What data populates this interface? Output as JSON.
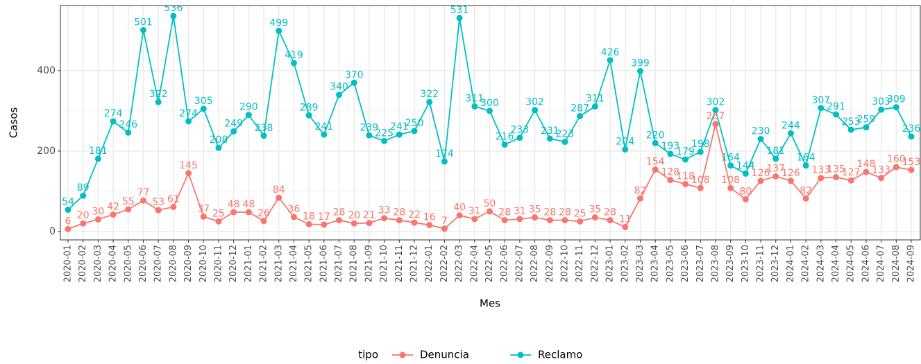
{
  "chart_data": {
    "type": "line",
    "x_label": "Mes",
    "y_label": "Casos",
    "legend_title": "tipo",
    "legend_position": "bottom",
    "grid": true,
    "categories": [
      "2020-01",
      "2020-02",
      "2020-03",
      "2020-04",
      "2020-05",
      "2020-06",
      "2020-07",
      "2020-08",
      "2020-09",
      "2020-10",
      "2020-11",
      "2020-12",
      "2021-01",
      "2021-02",
      "2021-03",
      "2021-04",
      "2021-05",
      "2021-06",
      "2021-07",
      "2021-08",
      "2021-09",
      "2021-10",
      "2021-11",
      "2021-12",
      "2022-01",
      "2022-02",
      "2022-03",
      "2022-04",
      "2022-05",
      "2022-06",
      "2022-07",
      "2022-08",
      "2022-09",
      "2022-10",
      "2022-11",
      "2022-12",
      "2023-01",
      "2023-02",
      "2023-03",
      "2023-04",
      "2023-05",
      "2023-06",
      "2023-07",
      "2023-08",
      "2023-09",
      "2023-10",
      "2023-11",
      "2023-12",
      "2024-01",
      "2024-02",
      "2024-03",
      "2024-04",
      "2024-05",
      "2024-06",
      "2024-07",
      "2024-08",
      "2024-09"
    ],
    "series": [
      {
        "name": "Denuncia",
        "color": "#F8766D",
        "values": [
          6,
          20,
          30,
          42,
          55,
          77,
          53,
          61,
          145,
          37,
          25,
          48,
          48,
          26,
          84,
          36,
          18,
          17,
          28,
          20,
          21,
          33,
          28,
          22,
          16,
          7,
          40,
          31,
          50,
          28,
          31,
          35,
          28,
          28,
          25,
          35,
          28,
          11,
          82,
          154,
          128,
          118,
          108,
          267,
          108,
          80,
          126,
          137,
          126,
          82,
          133,
          135,
          127,
          148,
          133,
          160,
          153
        ]
      },
      {
        "name": "Reclamo",
        "color": "#00BFC4",
        "values": [
          54,
          89,
          181,
          274,
          246,
          501,
          322,
          536,
          274,
          305,
          208,
          249,
          290,
          238,
          499,
          419,
          289,
          241,
          340,
          370,
          239,
          225,
          241,
          250,
          322,
          174,
          531,
          311,
          300,
          216,
          233,
          302,
          231,
          223,
          287,
          311,
          426,
          204,
          399,
          220,
          193,
          179,
          198,
          302,
          164,
          144,
          230,
          181,
          244,
          164,
          307,
          291,
          253,
          259,
          303,
          309,
          236
        ]
      }
    ],
    "ylim": [
      -21,
      562
    ],
    "yticks": [
      0,
      200,
      400
    ]
  }
}
